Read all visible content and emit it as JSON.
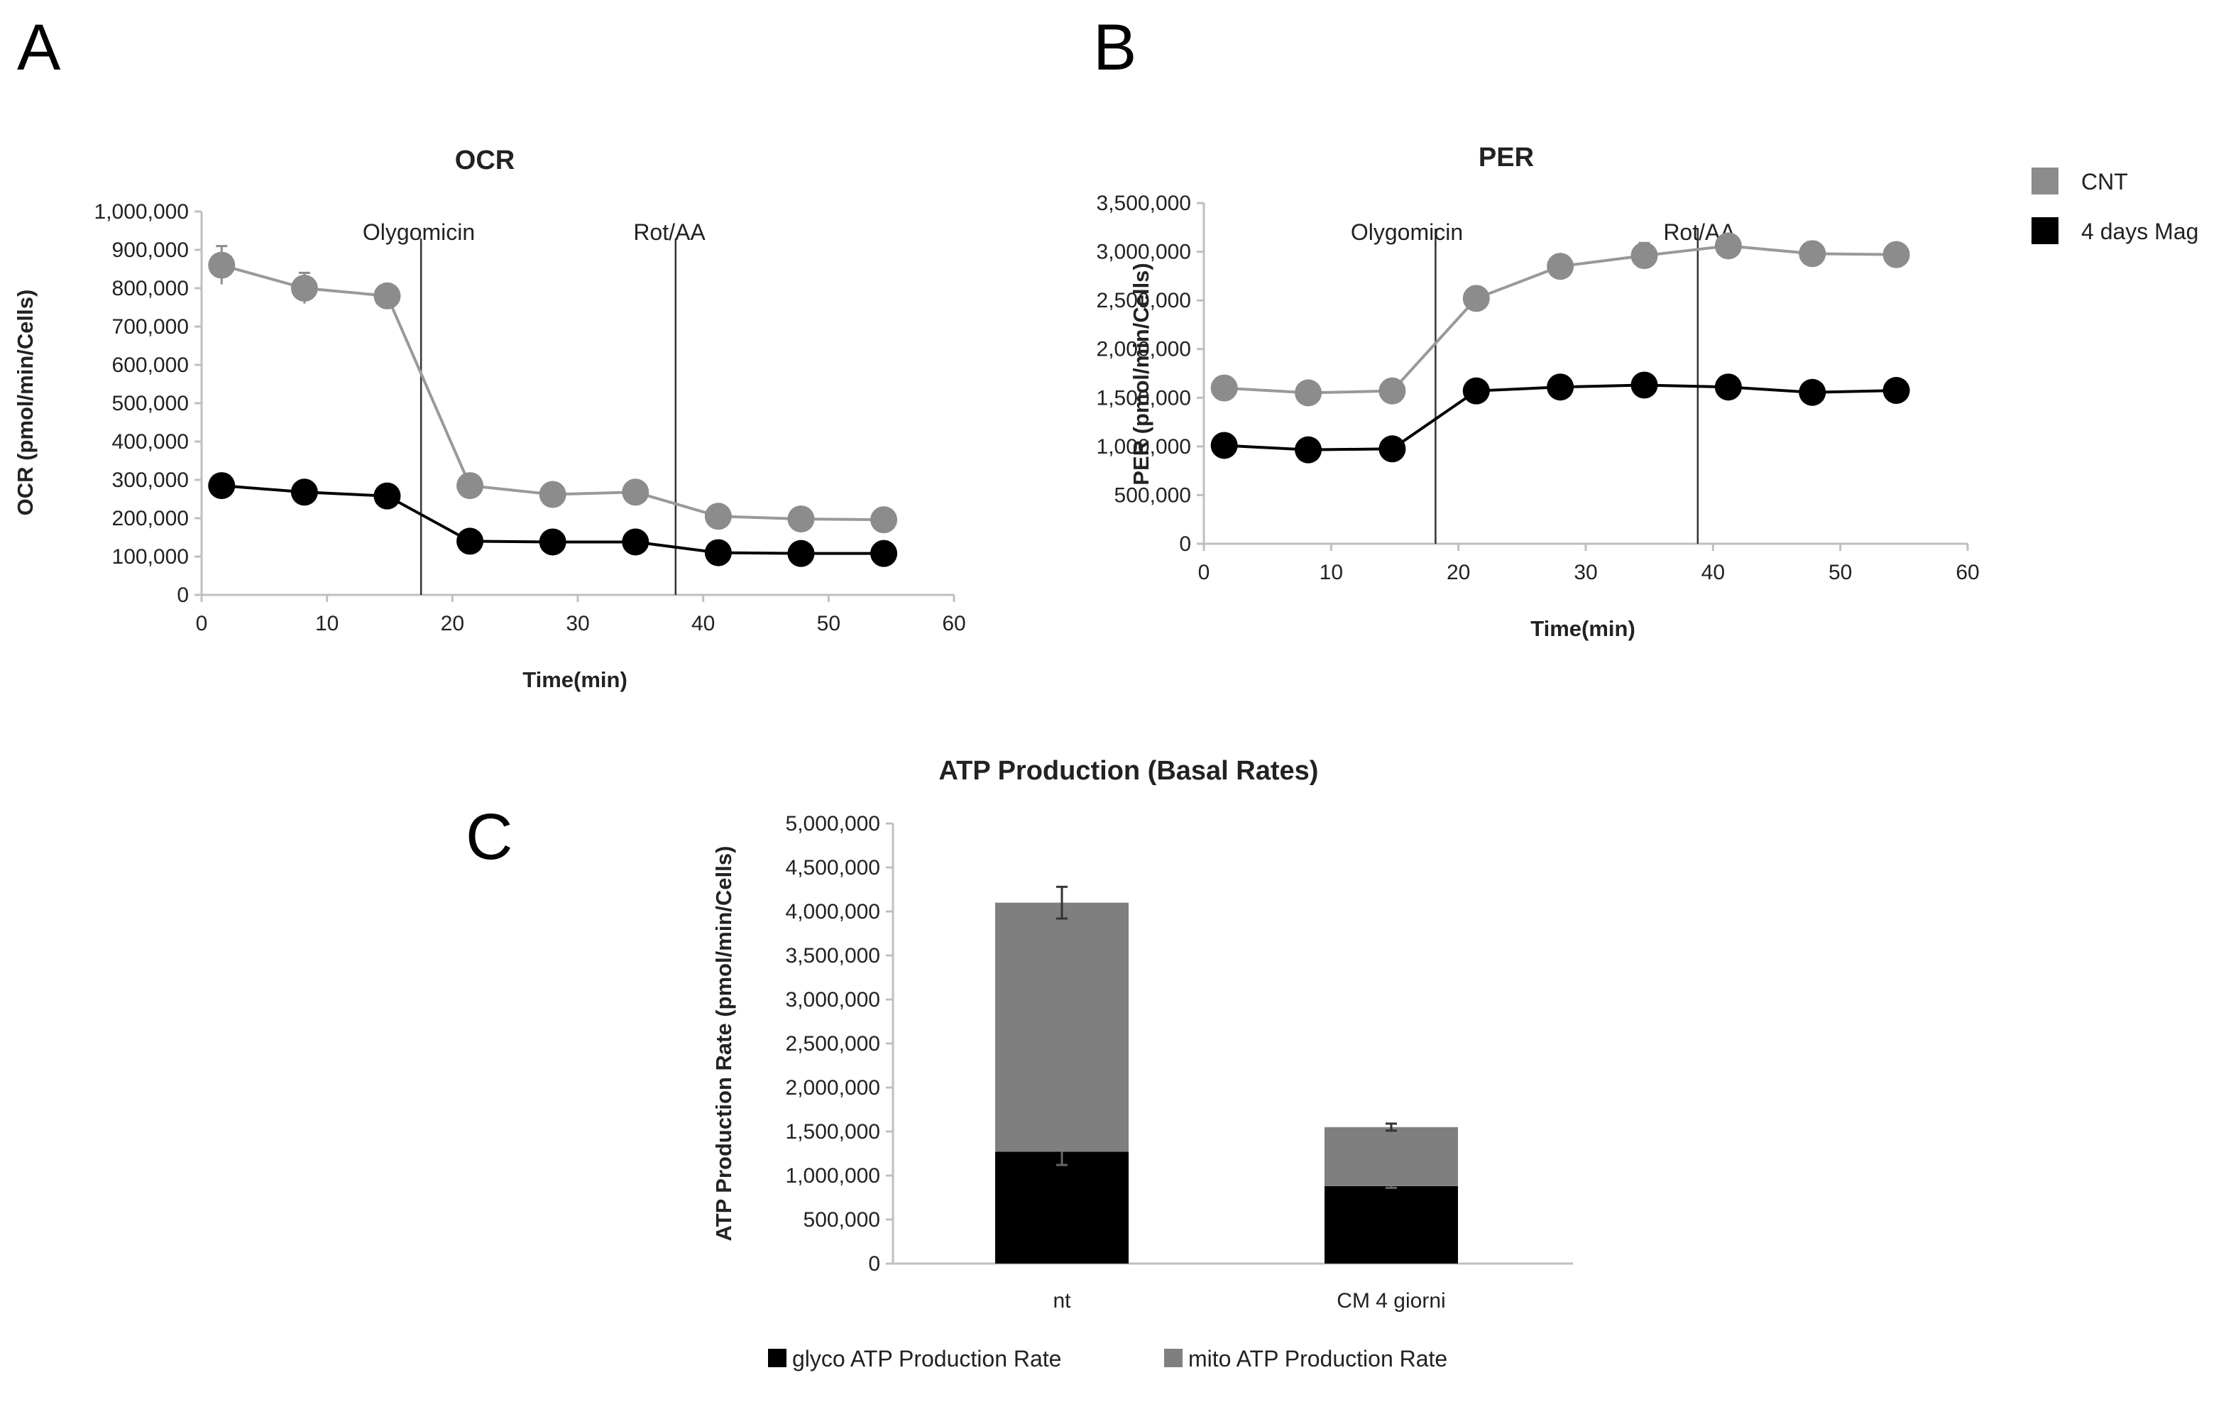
{
  "panel_labels": [
    "A",
    "B",
    "C"
  ],
  "colors": {
    "cnt": "#8c8c8c",
    "mag": "#000000",
    "axis": "#bfbfbf",
    "glyco": "#000000",
    "mito": "#7f7f7f"
  },
  "legend": {
    "items": [
      {
        "label": "CNT",
        "color": "#8c8c8c"
      },
      {
        "label": "4 days Mag",
        "color": "#000000"
      }
    ]
  },
  "chart_data": [
    {
      "id": "ocr",
      "type": "line",
      "title": "OCR",
      "xlabel": "Time(min)",
      "ylabel": "OCR (pmol/min/Cells)",
      "xlim": [
        0,
        60
      ],
      "ylim": [
        0,
        1000000
      ],
      "xticks": [
        0,
        10,
        20,
        30,
        40,
        50,
        60
      ],
      "yticks": [
        0,
        100000,
        200000,
        300000,
        400000,
        500000,
        600000,
        700000,
        800000,
        900000,
        1000000
      ],
      "ytick_labels": [
        "0",
        "100,000",
        "200,000",
        "300,000",
        "400,000",
        "500,000",
        "600,000",
        "700,000",
        "800,000",
        "900,000",
        "1,000,000"
      ],
      "x": [
        1.6,
        8.2,
        14.8,
        21.4,
        28.0,
        34.6,
        41.2,
        47.8,
        54.4
      ],
      "series": [
        {
          "name": "CNT",
          "values": [
            860000,
            800000,
            780000,
            285000,
            262000,
            268000,
            205000,
            198000,
            196000
          ],
          "errors": [
            50000,
            40000,
            15000,
            15000,
            10000,
            10000,
            10000,
            8000,
            8000
          ]
        },
        {
          "name": "4 days Mag",
          "values": [
            285000,
            268000,
            258000,
            140000,
            138000,
            138000,
            110000,
            108000,
            108000
          ],
          "errors": [
            10000,
            8000,
            8000,
            8000,
            6000,
            6000,
            6000,
            5000,
            5000
          ]
        }
      ],
      "vlines": [
        {
          "x": 17.5,
          "label": "Olygomicin"
        },
        {
          "x": 37.8,
          "label": "Rot/AA"
        }
      ]
    },
    {
      "id": "per",
      "type": "line",
      "title": "PER",
      "xlabel": "Time(min)",
      "ylabel": "PER (pmol/min/Cells)",
      "xlim": [
        0,
        60
      ],
      "ylim": [
        0,
        3500000
      ],
      "xticks": [
        0,
        10,
        20,
        30,
        40,
        50,
        60
      ],
      "yticks": [
        0,
        500000,
        1000000,
        1500000,
        2000000,
        2500000,
        3000000,
        3500000
      ],
      "ytick_labels": [
        "0",
        "500,000",
        "1,000,000",
        "1,500,000",
        "2,000,000",
        "2,500,000",
        "3,000,000",
        "3,500,000"
      ],
      "x": [
        1.6,
        8.2,
        14.8,
        21.4,
        28.0,
        34.6,
        41.2,
        47.8,
        54.4
      ],
      "series": [
        {
          "name": "CNT",
          "values": [
            1600000,
            1550000,
            1570000,
            2520000,
            2850000,
            2960000,
            3060000,
            2980000,
            2970000
          ],
          "errors": [
            90000,
            80000,
            80000,
            120000,
            90000,
            130000,
            80000,
            120000,
            100000
          ]
        },
        {
          "name": "4 days Mag",
          "values": [
            1010000,
            965000,
            975000,
            1570000,
            1610000,
            1630000,
            1610000,
            1555000,
            1575000
          ],
          "errors": [
            40000,
            40000,
            40000,
            50000,
            40000,
            40000,
            40000,
            40000,
            40000
          ]
        }
      ],
      "vlines": [
        {
          "x": 18.2,
          "label": "Olygomicin"
        },
        {
          "x": 38.8,
          "label": "Rot/AA"
        }
      ]
    },
    {
      "id": "atp",
      "type": "bar",
      "stacked": true,
      "title": "ATP Production (Basal Rates)",
      "xlabel": "",
      "ylabel": "ATP Production Rate (pmol/min/Cells)",
      "ylim": [
        0,
        5000000
      ],
      "yticks": [
        0,
        500000,
        1000000,
        1500000,
        2000000,
        2500000,
        3000000,
        3500000,
        4000000,
        4500000,
        5000000
      ],
      "ytick_labels": [
        "0",
        "500,000",
        "1,000,000",
        "1,500,000",
        "2,000,000",
        "2,500,000",
        "3,000,000",
        "3,500,000",
        "4,000,000",
        "4,500,000",
        "5,000,000"
      ],
      "categories": [
        "nt",
        "CM 4 giorni"
      ],
      "series": [
        {
          "name": "glyco ATP Production Rate",
          "values": [
            1270000,
            880000
          ],
          "errors": [
            150000,
            20000
          ]
        },
        {
          "name": "mito ATP Production Rate",
          "values": [
            2830000,
            670000
          ],
          "errors": [
            180000,
            40000
          ]
        }
      ]
    }
  ]
}
